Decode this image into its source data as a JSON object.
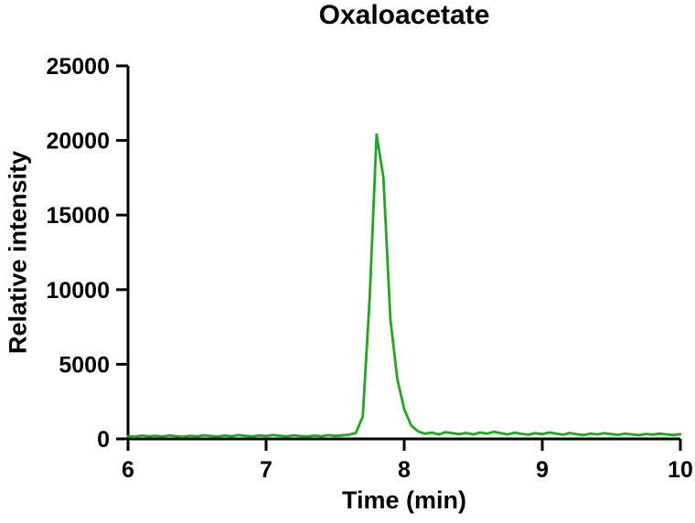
{
  "chart_data": {
    "type": "line",
    "title": "Oxaloacetate",
    "xlabel": "Time (min)",
    "ylabel": "Relative intensity",
    "xlim": [
      6,
      10
    ],
    "ylim": [
      0,
      25000
    ],
    "x_ticks": [
      6,
      7,
      8,
      9,
      10
    ],
    "y_ticks": [
      0,
      5000,
      10000,
      15000,
      20000,
      25000
    ],
    "grid": false,
    "legend": "none",
    "line_color": "#1fa81f",
    "axis_color": "#000000",
    "peak": {
      "time_min": 7.8,
      "intensity": 20400
    },
    "x": [
      6,
      6.05,
      6.1,
      6.15,
      6.2,
      6.25,
      6.3,
      6.35,
      6.4,
      6.45,
      6.5,
      6.55,
      6.6,
      6.65,
      6.7,
      6.75,
      6.8,
      6.85,
      6.9,
      6.95,
      7,
      7.05,
      7.1,
      7.15,
      7.2,
      7.25,
      7.3,
      7.35,
      7.4,
      7.45,
      7.5,
      7.55,
      7.6,
      7.65,
      7.7,
      7.75,
      7.8,
      7.85,
      7.9,
      7.95,
      8,
      8.05,
      8.1,
      8.15,
      8.2,
      8.25,
      8.3,
      8.35,
      8.4,
      8.45,
      8.5,
      8.55,
      8.6,
      8.65,
      8.7,
      8.75,
      8.8,
      8.85,
      8.9,
      8.95,
      9,
      9.05,
      9.1,
      9.15,
      9.2,
      9.25,
      9.3,
      9.35,
      9.4,
      9.45,
      9.5,
      9.55,
      9.6,
      9.65,
      9.7,
      9.75,
      9.8,
      9.85,
      9.9,
      9.95,
      10
    ],
    "series": [
      {
        "name": "Oxaloacetate",
        "values": [
          180,
          150,
          220,
          170,
          200,
          160,
          230,
          180,
          150,
          210,
          170,
          240,
          190,
          160,
          220,
          180,
          250,
          200,
          160,
          230,
          190,
          260,
          210,
          170,
          240,
          190,
          160,
          220,
          180,
          250,
          200,
          230,
          280,
          400,
          1500,
          9500,
          20400,
          17500,
          8000,
          4000,
          2000,
          900,
          500,
          350,
          420,
          300,
          450,
          380,
          320,
          400,
          300,
          430,
          350,
          480,
          380,
          300,
          420,
          340,
          280,
          380,
          320,
          430,
          350,
          280,
          390,
          310,
          260,
          350,
          300,
          380,
          320,
          270,
          350,
          300,
          250,
          330,
          290,
          350,
          300,
          260,
          320
        ]
      }
    ]
  }
}
